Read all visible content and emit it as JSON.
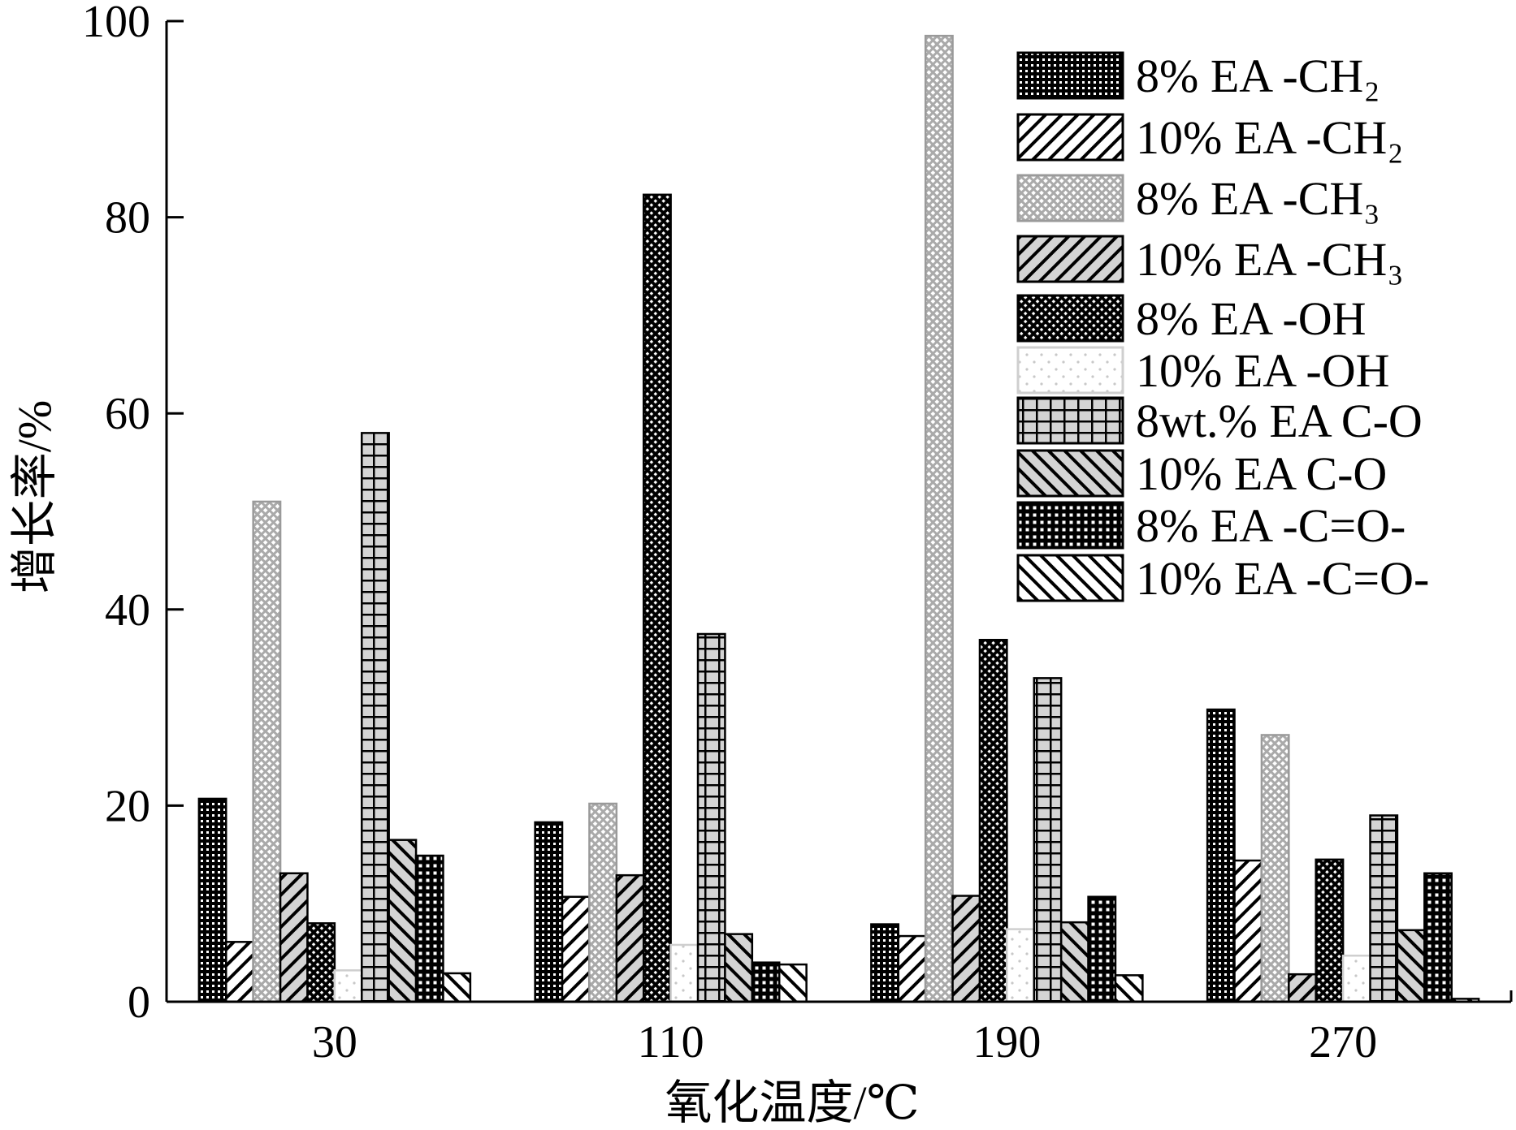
{
  "chart_data": {
    "type": "bar",
    "categories": [
      "30",
      "110",
      "190",
      "270"
    ],
    "xlabel": "氧化温度/℃",
    "ylabel": "增长率/%",
    "ylim": [
      0,
      100
    ],
    "yticks": [
      0,
      20,
      40,
      60,
      80,
      100
    ],
    "grid": false,
    "legend": "top-right",
    "series": [
      {
        "name": "8% EA -CH₂",
        "values": [
          20.7,
          18.3,
          7.9,
          29.8
        ],
        "color": "#000000",
        "edge": "#000000"
      },
      {
        "name": "10% EA -CH₂",
        "values": [
          6.1,
          10.7,
          6.7,
          14.4
        ],
        "color": "#ffffff",
        "edge": "#000000"
      },
      {
        "name": "8% EA -CH₃",
        "values": [
          51.0,
          20.2,
          98.5,
          27.2
        ],
        "color": "#aaaaaa",
        "edge": "#9a9a9a"
      },
      {
        "name": "10% EA -CH₃",
        "values": [
          13.1,
          12.9,
          10.8,
          2.8
        ],
        "color": "#d4d4d4",
        "edge": "#000000"
      },
      {
        "name": "8% EA -OH",
        "values": [
          8.0,
          82.3,
          36.9,
          14.5
        ],
        "color": "#000000",
        "edge": "#000000"
      },
      {
        "name": "10% EA -OH",
        "values": [
          3.2,
          5.8,
          7.4,
          4.7
        ],
        "color": "#ffffff",
        "edge": "#cfcfcf"
      },
      {
        "name": "8wt.% EA C-O",
        "values": [
          58.0,
          37.5,
          33.0,
          19.0
        ],
        "color": "#d4d4d4",
        "edge": "#000000"
      },
      {
        "name": "10% EA C-O",
        "values": [
          16.5,
          6.9,
          8.1,
          7.3
        ],
        "color": "#d4d4d4",
        "edge": "#000000"
      },
      {
        "name": "8% EA -C=O-",
        "values": [
          14.9,
          4.0,
          10.7,
          13.1
        ],
        "color": "#000000",
        "edge": "#000000"
      },
      {
        "name": "10% EA -C=O-",
        "values": [
          2.9,
          3.8,
          2.7,
          0.3
        ],
        "color": "#ffffff",
        "edge": "#000000"
      }
    ]
  }
}
